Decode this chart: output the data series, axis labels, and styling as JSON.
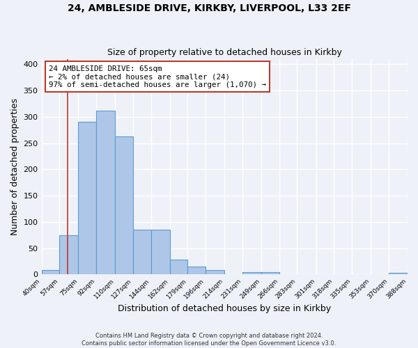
{
  "title1": "24, AMBLESIDE DRIVE, KIRKBY, LIVERPOOL, L33 2EF",
  "title2": "Size of property relative to detached houses in Kirkby",
  "xlabel": "Distribution of detached houses by size in Kirkby",
  "ylabel": "Number of detached properties",
  "bin_edges": [
    40,
    57,
    75,
    92,
    110,
    127,
    144,
    162,
    179,
    196,
    214,
    231,
    249,
    266,
    283,
    301,
    318,
    335,
    353,
    370,
    388
  ],
  "bar_heights": [
    8,
    75,
    290,
    311,
    263,
    85,
    85,
    28,
    15,
    8,
    0,
    5,
    5,
    0,
    0,
    0,
    0,
    0,
    0,
    3
  ],
  "bar_color": "#aec6e8",
  "bar_edge_color": "#5b9bd5",
  "marker_x": 65,
  "marker_color": "#c0392b",
  "annotation_line1": "24 AMBLESIDE DRIVE: 65sqm",
  "annotation_line2": "← 2% of detached houses are smaller (24)",
  "annotation_line3": "97% of semi-detached houses are larger (1,070) →",
  "annotation_box_color": "#ffffff",
  "annotation_box_edge_color": "#c0392b",
  "ylim": [
    0,
    410
  ],
  "xlim": [
    40,
    388
  ],
  "footnote1": "Contains HM Land Registry data © Crown copyright and database right 2024.",
  "footnote2": "Contains public sector information licensed under the Open Government Licence v3.0.",
  "background_color": "#eef2f8",
  "grid_color": "#ffffff",
  "tick_labels": [
    "40sqm",
    "57sqm",
    "75sqm",
    "92sqm",
    "110sqm",
    "127sqm",
    "144sqm",
    "162sqm",
    "179sqm",
    "196sqm",
    "214sqm",
    "231sqm",
    "249sqm",
    "266sqm",
    "283sqm",
    "301sqm",
    "318sqm",
    "335sqm",
    "353sqm",
    "370sqm",
    "388sqm"
  ]
}
